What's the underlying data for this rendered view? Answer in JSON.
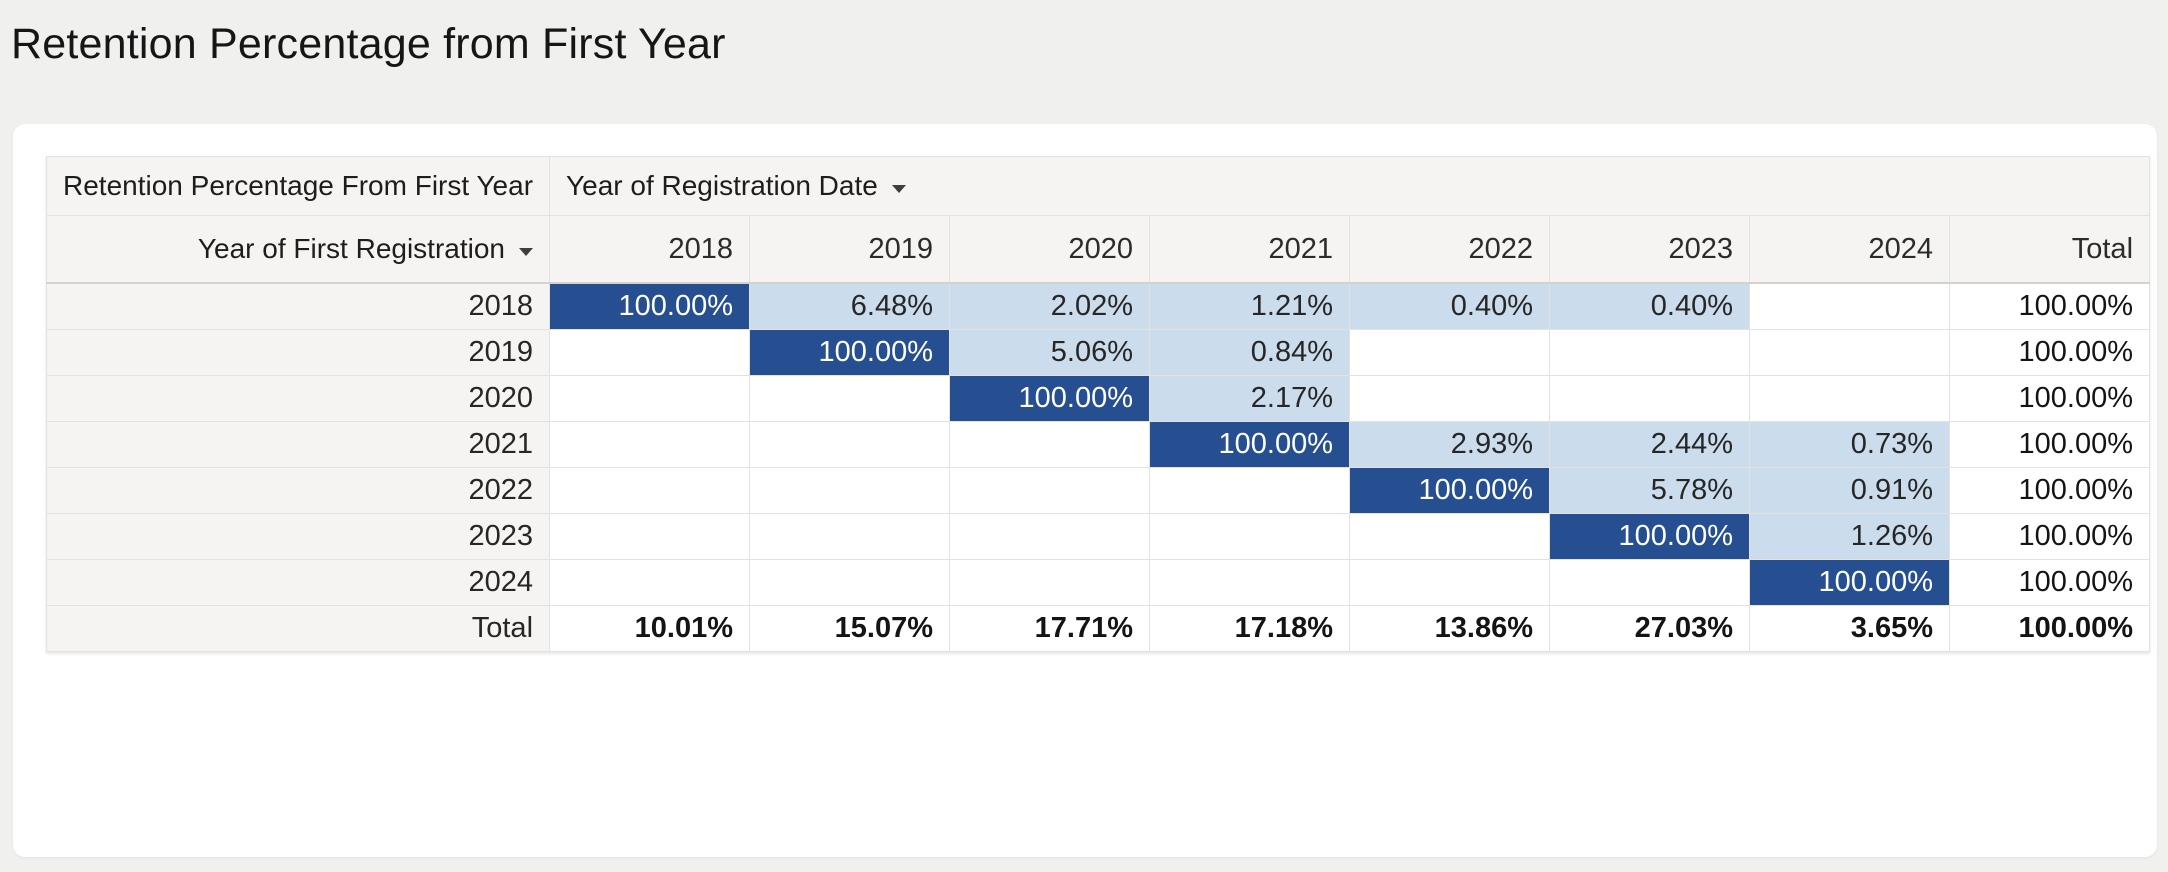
{
  "page": {
    "title": "Retention Percentage from First Year"
  },
  "colors": {
    "page_background": "#f0f0ee",
    "card_background": "#ffffff",
    "header_cell_background": "#f5f4f2",
    "grid_border": "#e2e2e1",
    "diagonal_cell": "#254f90",
    "retention_cell": "#cbdcec",
    "diagonal_text": "#ffffff",
    "text": "#2b2b2b"
  },
  "table": {
    "corner_header": "Retention Percentage From First Year",
    "column_dimension": {
      "label": "Year of Registration Date",
      "icon": "caret-down"
    },
    "row_dimension": {
      "label": "Year of First Registration",
      "icon": "caret-down"
    },
    "column_headers": [
      "2018",
      "2019",
      "2020",
      "2021",
      "2022",
      "2023",
      "2024",
      "Total"
    ],
    "rows": [
      {
        "label": "2018",
        "cells": [
          "100.00%",
          "6.48%",
          "2.02%",
          "1.21%",
          "0.40%",
          "0.40%",
          "",
          "100.00%"
        ],
        "styles": [
          "diag",
          "shade",
          "shade",
          "shade",
          "shade",
          "shade",
          "blank",
          "totalcol"
        ]
      },
      {
        "label": "2019",
        "cells": [
          "",
          "100.00%",
          "5.06%",
          "0.84%",
          "",
          "",
          "",
          "100.00%"
        ],
        "styles": [
          "blank",
          "diag",
          "shade",
          "shade",
          "blank",
          "blank",
          "blank",
          "totalcol"
        ]
      },
      {
        "label": "2020",
        "cells": [
          "",
          "",
          "100.00%",
          "2.17%",
          "",
          "",
          "",
          "100.00%"
        ],
        "styles": [
          "blank",
          "blank",
          "diag",
          "shade",
          "blank",
          "blank",
          "blank",
          "totalcol"
        ]
      },
      {
        "label": "2021",
        "cells": [
          "",
          "",
          "",
          "100.00%",
          "2.93%",
          "2.44%",
          "0.73%",
          "100.00%"
        ],
        "styles": [
          "blank",
          "blank",
          "blank",
          "diag",
          "shade",
          "shade",
          "shade",
          "totalcol"
        ]
      },
      {
        "label": "2022",
        "cells": [
          "",
          "",
          "",
          "",
          "100.00%",
          "5.78%",
          "0.91%",
          "100.00%"
        ],
        "styles": [
          "blank",
          "blank",
          "blank",
          "blank",
          "diag",
          "shade",
          "shade",
          "totalcol"
        ]
      },
      {
        "label": "2023",
        "cells": [
          "",
          "",
          "",
          "",
          "",
          "100.00%",
          "1.26%",
          "100.00%"
        ],
        "styles": [
          "blank",
          "blank",
          "blank",
          "blank",
          "blank",
          "diag",
          "shade",
          "totalcol"
        ]
      },
      {
        "label": "2024",
        "cells": [
          "",
          "",
          "",
          "",
          "",
          "",
          "100.00%",
          "100.00%"
        ],
        "styles": [
          "blank",
          "blank",
          "blank",
          "blank",
          "blank",
          "blank",
          "diag",
          "totalcol"
        ]
      },
      {
        "label": "Total",
        "is_total": true,
        "cells": [
          "10.01%",
          "15.07%",
          "17.71%",
          "17.18%",
          "13.86%",
          "27.03%",
          "3.65%",
          "100.00%"
        ],
        "styles": [
          "bold",
          "bold",
          "bold",
          "bold",
          "bold",
          "bold",
          "bold",
          "totalcol"
        ]
      }
    ]
  },
  "chart_data": {
    "type": "table",
    "title": "Retention Percentage from First Year",
    "row_dimension": "Year of First Registration",
    "column_dimension": "Year of Registration Date",
    "columns": [
      "2018",
      "2019",
      "2020",
      "2021",
      "2022",
      "2023",
      "2024",
      "Total"
    ],
    "rows": [
      {
        "label": "2018",
        "values": [
          "100.00%",
          "6.48%",
          "2.02%",
          "1.21%",
          "0.40%",
          "0.40%",
          null,
          "100.00%"
        ]
      },
      {
        "label": "2019",
        "values": [
          null,
          "100.00%",
          "5.06%",
          "0.84%",
          null,
          null,
          null,
          "100.00%"
        ]
      },
      {
        "label": "2020",
        "values": [
          null,
          null,
          "100.00%",
          "2.17%",
          null,
          null,
          null,
          "100.00%"
        ]
      },
      {
        "label": "2021",
        "values": [
          null,
          null,
          null,
          "100.00%",
          "2.93%",
          "2.44%",
          "0.73%",
          "100.00%"
        ]
      },
      {
        "label": "2022",
        "values": [
          null,
          null,
          null,
          null,
          "100.00%",
          "5.78%",
          "0.91%",
          "100.00%"
        ]
      },
      {
        "label": "2023",
        "values": [
          null,
          null,
          null,
          null,
          null,
          "100.00%",
          "1.26%",
          "100.00%"
        ]
      },
      {
        "label": "2024",
        "values": [
          null,
          null,
          null,
          null,
          null,
          null,
          "100.00%",
          "100.00%"
        ]
      },
      {
        "label": "Total",
        "values": [
          "10.01%",
          "15.07%",
          "17.71%",
          "17.18%",
          "13.86%",
          "27.03%",
          "3.65%",
          "100.00%"
        ]
      }
    ]
  }
}
